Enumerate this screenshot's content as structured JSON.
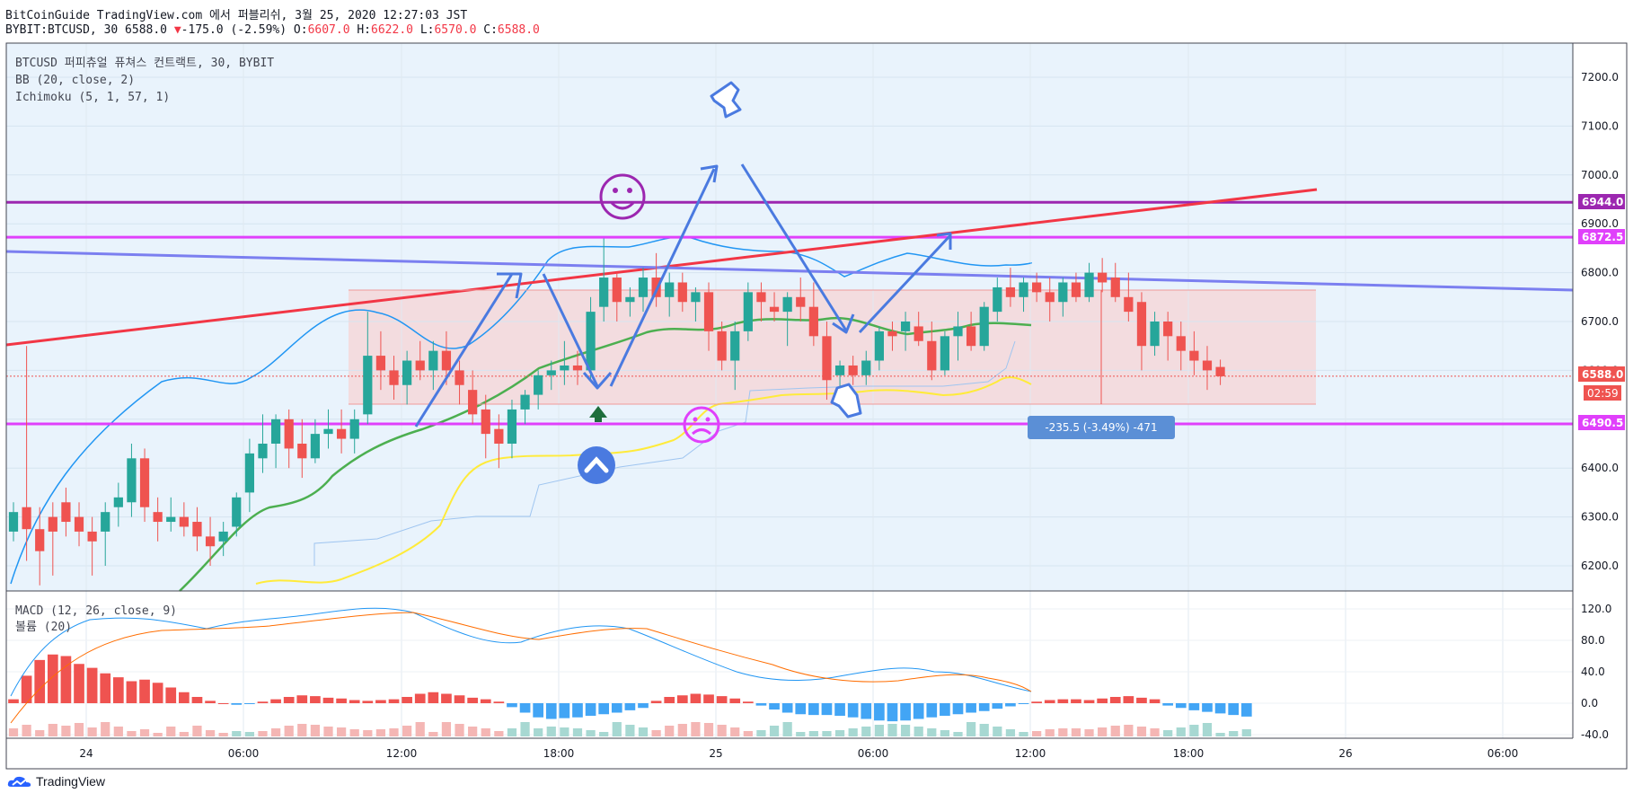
{
  "header": {
    "line1": "BitCoinGuide TradingView.com 에서 퍼블리쉬, 3월 25, 2020 12:27:03 JST",
    "symbol": "BYBIT:BTCUSD, 30 6588.0",
    "change": "-175.0 (-2.59%)",
    "o_label": "O:",
    "o_val": "6607.0",
    "h_label": "H:",
    "h_val": "6622.0",
    "l_label": "L:",
    "l_val": "6570.0",
    "c_label": "C:",
    "c_val": "6588.0"
  },
  "legend": {
    "title": "BTCUSD 퍼피츄얼 퓨쳐스 컨트랙트, 30, BYBIT",
    "bb": "BB (20, close, 2)",
    "ichimoku": "Ichimoku (5, 1, 57, 1)",
    "macd": "MACD (12, 26, close, 9)",
    "volume": "볼륨 (20)"
  },
  "price_tags": {
    "level_6944": "6944.0",
    "level_6872": "6872.5",
    "last": "6588.0",
    "countdown": "02:59",
    "level_6490": "6490.5"
  },
  "measure_label": "-235.5 (-3.49%) -471",
  "footer": {
    "brand": "TradingView"
  },
  "colors": {
    "up": "#26a69a",
    "down": "#ef5350",
    "magenta": "#e040fb",
    "purple": "#9c27b0",
    "bb_band": "#2196f3",
    "bb_mid": "#4caf50",
    "ichimoku": "#ffeb3b",
    "trend_red": "#f23645",
    "trend_blue": "#7b7ff0",
    "arrow": "#4a7ae0"
  },
  "chart_data": [
    {
      "type": "candlestick",
      "y_ticks": [
        "7200.0",
        "7100.0",
        "7000.0",
        "6900.0",
        "6800.0",
        "6700.0",
        "6600.0",
        "6500.0",
        "6400.0",
        "6300.0",
        "6200.0"
      ],
      "ylim": [
        6150,
        7290
      ],
      "x_ticks": [
        "24",
        "06:00",
        "12:00",
        "18:00",
        "25",
        "06:00",
        "12:00",
        "18:00",
        "26",
        "06:00"
      ],
      "horizontal_levels": [
        6944.0,
        6872.5,
        6490.5
      ],
      "last_price": 6588.0,
      "candles": [
        [
          6270,
          6330,
          6250,
          6310
        ],
        [
          6320,
          6650,
          6210,
          6275
        ],
        [
          6275,
          6320,
          6160,
          6230
        ],
        [
          6300,
          6330,
          6180,
          6270
        ],
        [
          6330,
          6360,
          6260,
          6290
        ],
        [
          6300,
          6330,
          6240,
          6270
        ],
        [
          6270,
          6300,
          6180,
          6250
        ],
        [
          6270,
          6330,
          6200,
          6310
        ],
        [
          6320,
          6370,
          6280,
          6340
        ],
        [
          6330,
          6450,
          6300,
          6420
        ],
        [
          6420,
          6440,
          6290,
          6320
        ],
        [
          6310,
          6340,
          6250,
          6290
        ],
        [
          6290,
          6340,
          6270,
          6300
        ],
        [
          6300,
          6330,
          6260,
          6280
        ],
        [
          6290,
          6320,
          6230,
          6260
        ],
        [
          6260,
          6300,
          6200,
          6240
        ],
        [
          6250,
          6290,
          6220,
          6270
        ],
        [
          6280,
          6350,
          6260,
          6340
        ],
        [
          6350,
          6460,
          6310,
          6430
        ],
        [
          6420,
          6510,
          6390,
          6450
        ],
        [
          6450,
          6510,
          6400,
          6500
        ],
        [
          6500,
          6520,
          6400,
          6440
        ],
        [
          6450,
          6500,
          6380,
          6420
        ],
        [
          6420,
          6500,
          6410,
          6470
        ],
        [
          6470,
          6520,
          6440,
          6480
        ],
        [
          6480,
          6520,
          6430,
          6460
        ],
        [
          6460,
          6520,
          6430,
          6500
        ],
        [
          6510,
          6720,
          6490,
          6630
        ],
        [
          6630,
          6680,
          6560,
          6600
        ],
        [
          6600,
          6630,
          6540,
          6570
        ],
        [
          6570,
          6640,
          6530,
          6620
        ],
        [
          6620,
          6660,
          6580,
          6600
        ],
        [
          6600,
          6660,
          6560,
          6640
        ],
        [
          6640,
          6680,
          6570,
          6600
        ],
        [
          6600,
          6620,
          6530,
          6570
        ],
        [
          6560,
          6600,
          6490,
          6510
        ],
        [
          6520,
          6550,
          6420,
          6470
        ],
        [
          6480,
          6510,
          6400,
          6450
        ],
        [
          6450,
          6540,
          6420,
          6520
        ],
        [
          6520,
          6560,
          6490,
          6550
        ],
        [
          6550,
          6600,
          6520,
          6590
        ],
        [
          6590,
          6620,
          6560,
          6600
        ],
        [
          6600,
          6660,
          6570,
          6610
        ],
        [
          6610,
          6640,
          6570,
          6600
        ],
        [
          6600,
          6750,
          6580,
          6720
        ],
        [
          6730,
          6870,
          6700,
          6790
        ],
        [
          6790,
          6800,
          6700,
          6740
        ],
        [
          6740,
          6770,
          6710,
          6750
        ],
        [
          6750,
          6810,
          6720,
          6790
        ],
        [
          6790,
          6840,
          6730,
          6750
        ],
        [
          6750,
          6800,
          6710,
          6780
        ],
        [
          6780,
          6800,
          6720,
          6740
        ],
        [
          6740,
          6770,
          6700,
          6760
        ],
        [
          6760,
          6780,
          6640,
          6680
        ],
        [
          6680,
          6700,
          6600,
          6620
        ],
        [
          6620,
          6700,
          6560,
          6680
        ],
        [
          6680,
          6780,
          6660,
          6760
        ],
        [
          6760,
          6780,
          6700,
          6740
        ],
        [
          6730,
          6760,
          6700,
          6720
        ],
        [
          6720,
          6760,
          6650,
          6750
        ],
        [
          6750,
          6790,
          6700,
          6730
        ],
        [
          6730,
          6780,
          6650,
          6670
        ],
        [
          6670,
          6700,
          6540,
          6580
        ],
        [
          6590,
          6620,
          6560,
          6610
        ],
        [
          6610,
          6630,
          6570,
          6590
        ],
        [
          6590,
          6640,
          6570,
          6620
        ],
        [
          6620,
          6690,
          6600,
          6680
        ],
        [
          6680,
          6700,
          6640,
          6670
        ],
        [
          6680,
          6720,
          6640,
          6700
        ],
        [
          6690,
          6720,
          6650,
          6660
        ],
        [
          6660,
          6700,
          6580,
          6600
        ],
        [
          6600,
          6680,
          6590,
          6670
        ],
        [
          6670,
          6720,
          6620,
          6690
        ],
        [
          6690,
          6720,
          6640,
          6650
        ],
        [
          6650,
          6740,
          6640,
          6730
        ],
        [
          6720,
          6790,
          6700,
          6770
        ],
        [
          6770,
          6810,
          6730,
          6750
        ],
        [
          6750,
          6790,
          6720,
          6780
        ],
        [
          6780,
          6800,
          6740,
          6760
        ],
        [
          6760,
          6790,
          6700,
          6740
        ],
        [
          6740,
          6790,
          6710,
          6780
        ],
        [
          6780,
          6800,
          6740,
          6750
        ],
        [
          6750,
          6820,
          6740,
          6800
        ],
        [
          6800,
          6830,
          6760,
          6780
        ],
        [
          6790,
          6820,
          6740,
          6750
        ],
        [
          6750,
          6800,
          6700,
          6720
        ],
        [
          6740,
          6760,
          6600,
          6650
        ],
        [
          6650,
          6720,
          6630,
          6700
        ],
        [
          6700,
          6720,
          6620,
          6670
        ],
        [
          6670,
          6700,
          6600,
          6640
        ],
        [
          6640,
          6680,
          6590,
          6620
        ],
        [
          6620,
          6650,
          6560,
          6600
        ],
        [
          6607,
          6622,
          6570,
          6588
        ]
      ]
    },
    {
      "type": "macd",
      "y_ticks": [
        "120.0",
        "80.0",
        "40.0",
        "0.0",
        "-40.0"
      ],
      "ylim": [
        -45,
        135
      ],
      "histogram": [
        5,
        35,
        55,
        62,
        60,
        50,
        45,
        38,
        33,
        28,
        30,
        26,
        20,
        14,
        8,
        3,
        0,
        -2,
        -1,
        2,
        5,
        8,
        10,
        9,
        7,
        6,
        4,
        3,
        4,
        5,
        8,
        12,
        14,
        12,
        10,
        7,
        5,
        2,
        -5,
        -12,
        -18,
        -20,
        -19,
        -18,
        -16,
        -14,
        -12,
        -9,
        -6,
        3,
        8,
        10,
        12,
        11,
        9,
        6,
        2,
        -3,
        -8,
        -12,
        -14,
        -15,
        -15,
        -16,
        -18,
        -20,
        -22,
        -23,
        -22,
        -20,
        -18,
        -16,
        -14,
        -12,
        -10,
        -7,
        -4,
        -1,
        2,
        4,
        5,
        5,
        4,
        6,
        8,
        9,
        7,
        5,
        -3,
        -6,
        -9,
        -11,
        -13,
        -15,
        -17
      ]
    }
  ]
}
